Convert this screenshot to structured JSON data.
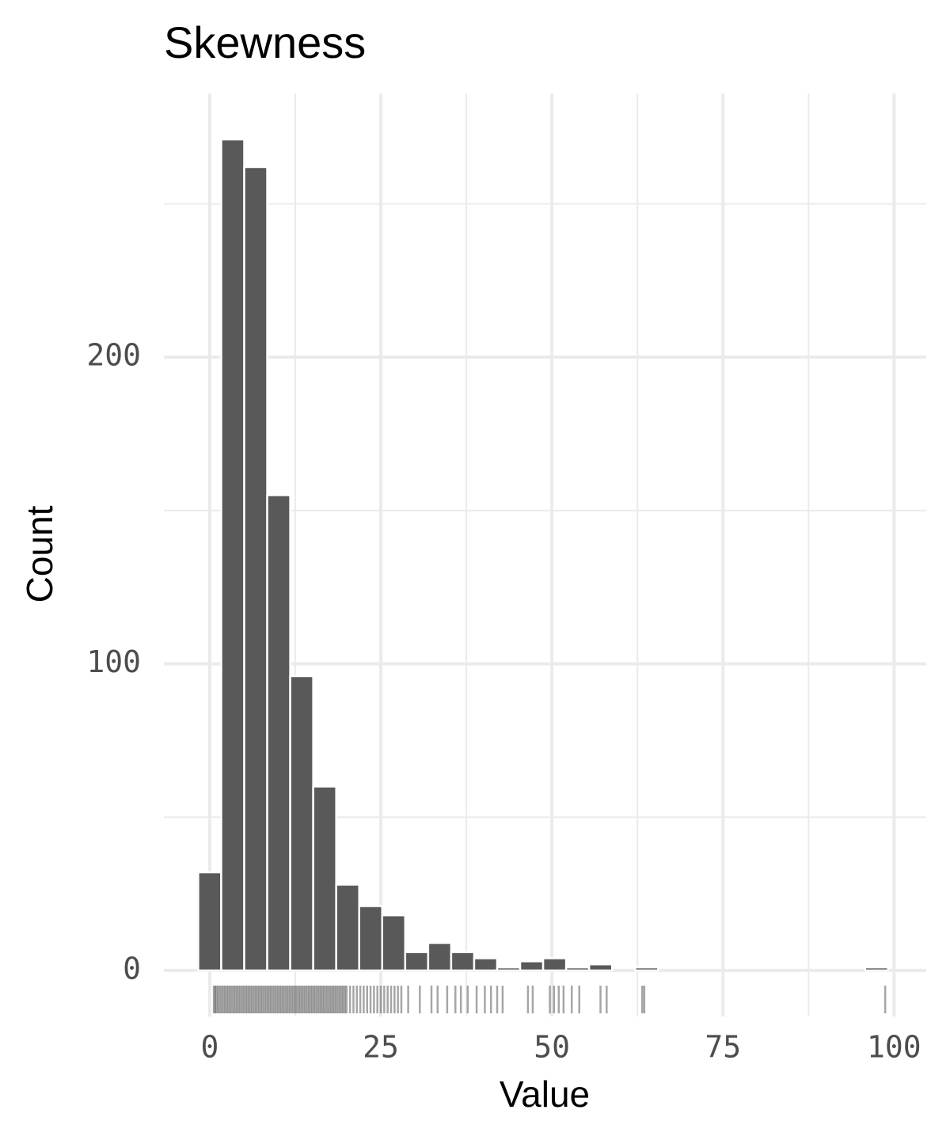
{
  "chart_data": {
    "type": "histogram",
    "title": "Skewness",
    "x_label": "Value",
    "y_label": "Count",
    "bins": [
      -1.68,
      1.68,
      5.04,
      8.4,
      11.76,
      15.12,
      18.48,
      21.84,
      25.2,
      28.56,
      31.92,
      35.28,
      38.64,
      42.0,
      45.36,
      48.72,
      52.08,
      55.44,
      58.8,
      62.16,
      65.52,
      68.88,
      72.24,
      75.6,
      78.96,
      82.32,
      85.68,
      89.04,
      92.4,
      95.76,
      99.12
    ],
    "counts": [
      32,
      271,
      262,
      155,
      96,
      60,
      28,
      21,
      18,
      6,
      9,
      6,
      4,
      1,
      3,
      4,
      1,
      2,
      0,
      1,
      0,
      0,
      0,
      0,
      0,
      0,
      0,
      0,
      0,
      1
    ],
    "color": "#595959",
    "rug": [
      0.6,
      0.8,
      1,
      1.25,
      1.5,
      1.75,
      2,
      2.25,
      2.5,
      2.75,
      3,
      3.25,
      3.5,
      3.75,
      4,
      4.25,
      4.5,
      4.75,
      5,
      5.25,
      5.5,
      5.75,
      6,
      6.25,
      6.5,
      6.75,
      7,
      7.25,
      7.5,
      7.75,
      8,
      8.25,
      8.5,
      8.75,
      9,
      9.25,
      9.5,
      9.75,
      10,
      10.25,
      10.5,
      10.75,
      11,
      11.25,
      11.5,
      11.75,
      12,
      12.25,
      12.5,
      12.75,
      13,
      13.25,
      13.5,
      13.75,
      14,
      14.25,
      14.5,
      14.75,
      15,
      15.25,
      15.5,
      15.75,
      16,
      16.25,
      16.5,
      16.75,
      17,
      17.25,
      17.5,
      17.75,
      18,
      18.25,
      18.5,
      18.75,
      19,
      19.25,
      19.5,
      19.75,
      20,
      20.5,
      21,
      21.5,
      22,
      22.5,
      23,
      23.5,
      24,
      24.5,
      25,
      25.5,
      26,
      26.5,
      27,
      27.5,
      28,
      29,
      30.7,
      32.4,
      33.3,
      34.7,
      35.9,
      36.7,
      37.7,
      39,
      40.2,
      41.1,
      42,
      42.8,
      46.5,
      47.2,
      49.7,
      50.3,
      51,
      51.7,
      52.9,
      54,
      57.1,
      58,
      63.2,
      63.5,
      98.7
    ],
    "rug_color": "#000000",
    "rug_alpha": 0.35,
    "xlim": [
      -6.7,
      104.7
    ],
    "xticks": [
      0,
      25,
      50,
      75,
      100
    ],
    "xminorticks": [
      12.5,
      37.5,
      62.5,
      87.5
    ],
    "ylim": [
      -15,
      286
    ],
    "yticks": [
      0,
      100,
      200
    ],
    "yminorticks": [
      50,
      150,
      250
    ],
    "grid": true
  }
}
